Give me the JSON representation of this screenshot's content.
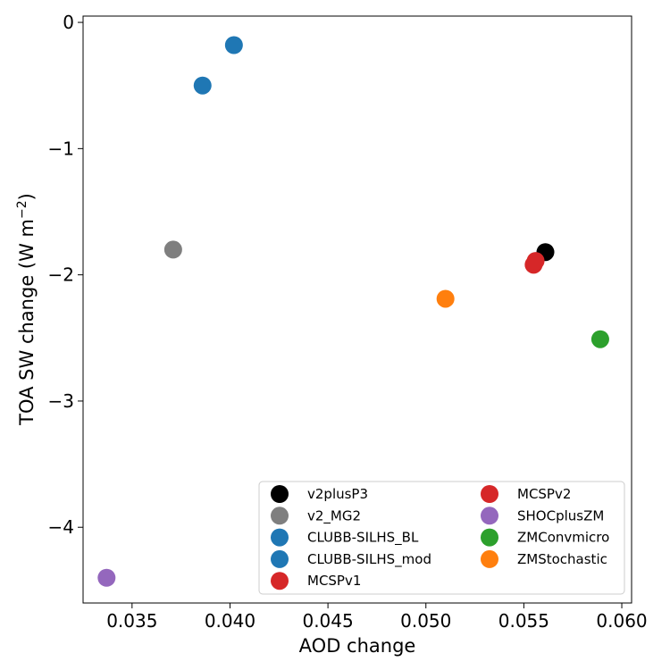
{
  "chart_data": {
    "type": "scatter",
    "title": "",
    "xlabel": "AOD change",
    "ylabel_main": "TOA SW change (W m",
    "ylabel_sup": "−2",
    "ylabel_close": ")",
    "xlim": [
      0.0325,
      0.0605
    ],
    "ylim": [
      -4.6,
      0.05
    ],
    "x_ticks": [
      0.035,
      0.04,
      0.045,
      0.05,
      0.055,
      0.06
    ],
    "x_tick_labels": [
      "0.035",
      "0.040",
      "0.045",
      "0.050",
      "0.055",
      "0.060"
    ],
    "y_ticks": [
      0,
      -1,
      -2,
      -3,
      -4
    ],
    "y_tick_labels": [
      "0",
      "−1",
      "−2",
      "−3",
      "−4"
    ],
    "grid": false,
    "legend_placement": "lower-right",
    "legend_columns": 2,
    "series": [
      {
        "name": "v2plusP3",
        "color": "#000000",
        "x": [
          0.0561
        ],
        "y": [
          -1.82
        ]
      },
      {
        "name": "v2_MG2",
        "color": "#7f7f7f",
        "x": [
          0.0371
        ],
        "y": [
          -1.8
        ]
      },
      {
        "name": "CLUBB-SILHS_BL",
        "color": "#1f77b4",
        "x": [
          0.0402
        ],
        "y": [
          -0.18
        ]
      },
      {
        "name": "CLUBB-SILHS_mod",
        "color": "#1f77b4",
        "x": [
          0.0386
        ],
        "y": [
          -0.5
        ]
      },
      {
        "name": "MCSPv1",
        "color": "#d62728",
        "x": [
          0.0555
        ],
        "y": [
          -1.92
        ]
      },
      {
        "name": "MCSPv2",
        "color": "#d62728",
        "x": [
          0.0556
        ],
        "y": [
          -1.89
        ]
      },
      {
        "name": "SHOCplusZM",
        "color": "#9467bd",
        "x": [
          0.0337
        ],
        "y": [
          -4.4
        ]
      },
      {
        "name": "ZMConvmicro",
        "color": "#2ca02c",
        "x": [
          0.0589
        ],
        "y": [
          -2.51
        ]
      },
      {
        "name": "ZMStochastic",
        "color": "#ff7f0e",
        "x": [
          0.051
        ],
        "y": [
          -2.19
        ]
      }
    ]
  }
}
